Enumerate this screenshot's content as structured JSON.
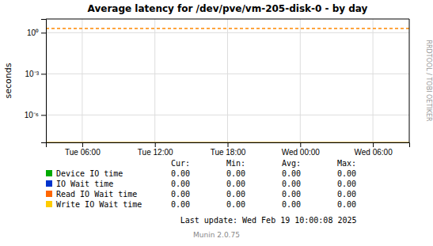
{
  "chart_data": {
    "type": "line",
    "title": "Average latency for /dev/pve/vm-205-disk-0 - by day",
    "y_label": "seconds",
    "categories": [
      "Tue 06:00",
      "Tue 12:00",
      "Tue 18:00",
      "Wed 00:00",
      "Wed 06:00"
    ],
    "log": "y",
    "ylim": [
      1e-08,
      10
    ],
    "yticks": [
      {
        "value": 1e-06,
        "label": "10⁻⁶"
      },
      {
        "value": 0.001,
        "label": "10⁻³"
      },
      {
        "value": 1,
        "label": "10⁰"
      }
    ],
    "grid": true,
    "hlines": [
      {
        "y": 2.0,
        "color": "#ff8800",
        "line_style": "dashed"
      },
      {
        "y": 1e-08,
        "color": "#ccaa44",
        "line_style": "solid"
      }
    ],
    "table_headers": [
      "Cur:",
      "Min:",
      "Avg:",
      "Max:"
    ],
    "series": [
      {
        "name": "Device IO time",
        "color": "#00aa00",
        "table_values": [
          "0.00",
          "0.00",
          "0.00",
          "0.00"
        ]
      },
      {
        "name": "IO Wait time",
        "color": "#0033cc",
        "table_values": [
          "0.00",
          "0.00",
          "0.00",
          "0.00"
        ]
      },
      {
        "name": "Read IO Wait time",
        "color": "#ff6600",
        "table_values": [
          "0.00",
          "0.00",
          "0.00",
          "0.00"
        ]
      },
      {
        "name": "Write IO Wait time",
        "color": "#ffcc00",
        "table_values": [
          "0.00",
          "0.00",
          "0.00",
          "0.00"
        ]
      }
    ],
    "annotations": [
      "Last update: Wed Feb 19 10:00:08 2025",
      "Munin 2.0.75",
      "RRDTOOL / TOBI OETIKER"
    ]
  }
}
